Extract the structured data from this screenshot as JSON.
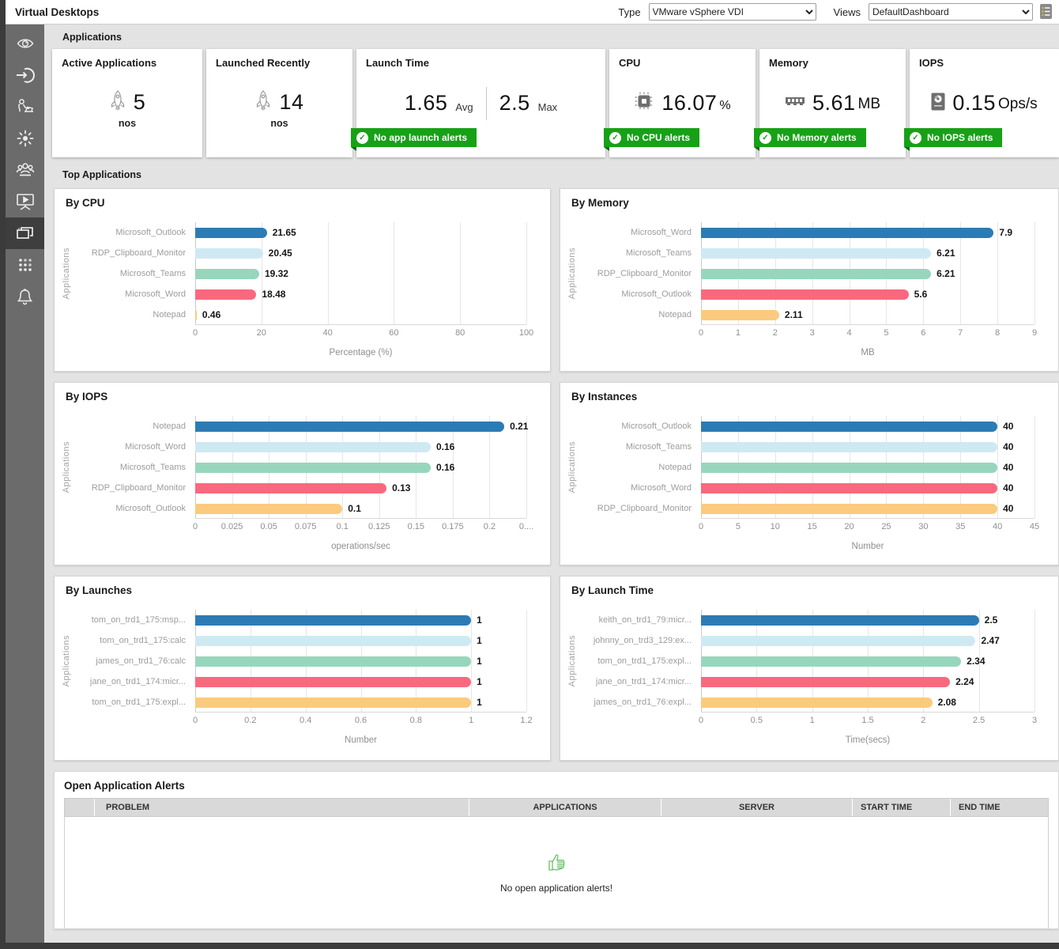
{
  "topbar": {
    "title": "Virtual Desktops",
    "type_label": "Type",
    "type_value": "VMware vSphere VDI",
    "views_label": "Views",
    "views_value": "DefaultDashboard",
    "list_icon": "list-menu-icon"
  },
  "sidebar": {
    "active_index": 6,
    "items": [
      {
        "icon": "eye-icon"
      },
      {
        "icon": "login-icon"
      },
      {
        "icon": "user-session-icon"
      },
      {
        "icon": "activity-sun-icon"
      },
      {
        "icon": "users-group-icon"
      },
      {
        "icon": "desktop-play-icon"
      },
      {
        "icon": "applications-windows-icon"
      },
      {
        "icon": "apps-grid-icon"
      },
      {
        "icon": "alerts-bell-icon"
      }
    ]
  },
  "sections": {
    "applications": "Applications",
    "top_applications": "Top Applications"
  },
  "cards": [
    {
      "title": "Active Applications",
      "icon": "rocket-icon",
      "value": "5",
      "unit": "nos"
    },
    {
      "title": "Launched Recently",
      "icon": "rocket-icon",
      "value": "14",
      "unit": "nos"
    },
    {
      "title": "Launch Time",
      "values": [
        {
          "value": "1.65",
          "suffix": "Avg"
        },
        {
          "value": "2.5",
          "suffix": "Max"
        }
      ],
      "badge": "No app launch alerts"
    },
    {
      "title": "CPU",
      "icon": "cpu-chip-icon",
      "value": "16.07",
      "suffix": "%",
      "badge": "No CPU alerts"
    },
    {
      "title": "Memory",
      "icon": "memory-ram-icon",
      "value": "5.61",
      "suffix": "MB",
      "badge": "No Memory alerts"
    },
    {
      "title": "IOPS",
      "icon": "hard-disk-icon",
      "value": "0.15",
      "suffix": "Ops/s",
      "badge": "No IOPS alerts"
    }
  ],
  "chart_data": [
    {
      "type": "bar",
      "orientation": "horizontal",
      "title": "By CPU",
      "categories": [
        "Microsoft_Outlook",
        "RDP_Clipboard_Monitor",
        "Microsoft_Teams",
        "Microsoft_Word",
        "Notepad"
      ],
      "values": [
        21.65,
        20.45,
        19.32,
        18.48,
        0.46
      ],
      "labels": [
        "21.65",
        "20.45",
        "19.32",
        "18.48",
        "0.46"
      ],
      "xlabel": "Percentage (%)",
      "ylabel": "Applications",
      "xlim": [
        0,
        100
      ],
      "xticks": [
        0,
        20,
        40,
        60,
        80,
        100
      ],
      "xtick_labels": [
        "0",
        "20",
        "40",
        "60",
        "80",
        "100"
      ],
      "grid": true,
      "legend": false
    },
    {
      "type": "bar",
      "orientation": "horizontal",
      "title": "By Memory",
      "categories": [
        "Microsoft_Word",
        "Microsoft_Teams",
        "RDP_Clipboard_Monitor",
        "Microsoft_Outlook",
        "Notepad"
      ],
      "values": [
        7.9,
        6.21,
        6.21,
        5.6,
        2.11
      ],
      "labels": [
        "7.9",
        "6.21",
        "6.21",
        "5.6",
        "2.11"
      ],
      "xlabel": "MB",
      "ylabel": "Applications",
      "xlim": [
        0,
        9
      ],
      "xticks": [
        0,
        1,
        2,
        3,
        4,
        5,
        6,
        7,
        8,
        9
      ],
      "xtick_labels": [
        "0",
        "1",
        "2",
        "3",
        "4",
        "5",
        "6",
        "7",
        "8",
        "9"
      ],
      "grid": true,
      "legend": false
    },
    {
      "type": "bar",
      "orientation": "horizontal",
      "title": "By IOPS",
      "categories": [
        "Notepad",
        "Microsoft_Word",
        "Microsoft_Teams",
        "RDP_Clipboard_Monitor",
        "Microsoft_Outlook"
      ],
      "values": [
        0.21,
        0.16,
        0.16,
        0.13,
        0.1
      ],
      "labels": [
        "0.21",
        "0.16",
        "0.16",
        "0.13",
        "0.1"
      ],
      "xlabel": "operations/sec",
      "ylabel": "Applications",
      "xlim": [
        0,
        0.225
      ],
      "xticks": [
        0,
        0.025,
        0.05,
        0.075,
        0.1,
        0.125,
        0.15,
        0.175,
        0.2,
        0.225
      ],
      "xtick_labels": [
        "0",
        "0.025",
        "0.05",
        "0.075",
        "0.1",
        "0.125",
        "0.15",
        "0.175",
        "0.2",
        "0...."
      ],
      "grid": true,
      "legend": false
    },
    {
      "type": "bar",
      "orientation": "horizontal",
      "title": "By Instances",
      "categories": [
        "Microsoft_Outlook",
        "Microsoft_Teams",
        "Notepad",
        "Microsoft_Word",
        "RDP_Clipboard_Monitor"
      ],
      "values": [
        40,
        40,
        40,
        40,
        40
      ],
      "labels": [
        "40",
        "40",
        "40",
        "40",
        "40"
      ],
      "xlabel": "Number",
      "ylabel": "Applications",
      "xlim": [
        0,
        45
      ],
      "xticks": [
        0,
        5,
        10,
        15,
        20,
        25,
        30,
        35,
        40,
        45
      ],
      "xtick_labels": [
        "0",
        "5",
        "10",
        "15",
        "20",
        "25",
        "30",
        "35",
        "40",
        "45"
      ],
      "grid": true,
      "legend": false
    },
    {
      "type": "bar",
      "orientation": "horizontal",
      "title": "By Launches",
      "categories": [
        "tom_on_trd1_175:msp...",
        "tom_on_trd1_175:calc",
        "james_on_trd1_76:calc",
        "jane_on_trd1_174:micr...",
        "tom_on_trd1_175:expl..."
      ],
      "values": [
        1,
        1,
        1,
        1,
        1
      ],
      "labels": [
        "1",
        "1",
        "1",
        "1",
        "1"
      ],
      "xlabel": "Number",
      "ylabel": "Applications",
      "xlim": [
        0,
        1.2
      ],
      "xticks": [
        0,
        0.2,
        0.4,
        0.6,
        0.8,
        1,
        1.2
      ],
      "xtick_labels": [
        "0",
        "0.2",
        "0.4",
        "0.6",
        "0.8",
        "1",
        "1.2"
      ],
      "grid": true,
      "legend": false
    },
    {
      "type": "bar",
      "orientation": "horizontal",
      "title": "By Launch Time",
      "categories": [
        "keith_on_trd1_79:micr...",
        "johnny_on_trd3_129:ex...",
        "tom_on_trd1_175:expl...",
        "jane_on_trd1_174:micr...",
        "james_on_trd1_76:expl..."
      ],
      "values": [
        2.5,
        2.47,
        2.34,
        2.24,
        2.08
      ],
      "labels": [
        "2.5",
        "2.47",
        "2.34",
        "2.24",
        "2.08"
      ],
      "xlabel": "Time(secs)",
      "ylabel": "Applications",
      "xlim": [
        0,
        3
      ],
      "xticks": [
        0,
        0.5,
        1,
        1.5,
        2,
        2.5,
        3
      ],
      "xtick_labels": [
        "0",
        "0.5",
        "1",
        "1.5",
        "2",
        "2.5",
        "3"
      ],
      "grid": true,
      "legend": false
    }
  ],
  "alerts_table": {
    "title": "Open Application Alerts",
    "columns": [
      "",
      "PROBLEM",
      "APPLICATIONS",
      "SERVER",
      "START TIME",
      "END TIME"
    ],
    "rows": [],
    "empty_icon": "thumbs-up-icon",
    "empty_message": "No open application alerts!"
  },
  "colors": {
    "bar_palette": [
      "#2d7bb5",
      "#cfe9f3",
      "#97d6bd",
      "#f9697e",
      "#fcca7e"
    ],
    "badge_green": "#17a117",
    "thumbs_up_green": "#6abf69",
    "sidebar_gray": "#6b6b6b",
    "sidebar_active": "#3e3e3e"
  }
}
